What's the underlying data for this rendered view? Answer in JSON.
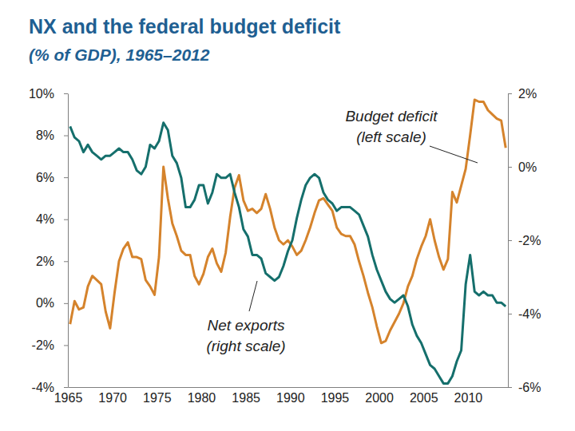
{
  "chart_data": {
    "type": "line",
    "title": "NX and the federal budget deficit",
    "subtitle": "(% of GDP), 1965–2012",
    "annotations": [
      [
        "Budget deficit",
        "(left scale)"
      ],
      [
        "Net exports",
        "(right scale)"
      ]
    ],
    "x": [
      1965.25,
      1965.75,
      1966.25,
      1966.75,
      1967.25,
      1967.75,
      1968.25,
      1968.75,
      1969.25,
      1969.75,
      1970.25,
      1970.75,
      1971.25,
      1971.75,
      1972.25,
      1972.75,
      1973.25,
      1973.75,
      1974.25,
      1974.75,
      1975.25,
      1975.75,
      1976.25,
      1976.75,
      1977.25,
      1977.75,
      1978.25,
      1978.75,
      1979.25,
      1979.75,
      1980.25,
      1980.75,
      1981.25,
      1981.75,
      1982.25,
      1982.75,
      1983.25,
      1983.75,
      1984.25,
      1984.75,
      1985.25,
      1985.75,
      1986.25,
      1986.75,
      1987.25,
      1987.75,
      1988.25,
      1988.75,
      1989.25,
      1989.75,
      1990.25,
      1990.75,
      1991.25,
      1991.75,
      1992.25,
      1992.75,
      1993.25,
      1993.75,
      1994.25,
      1994.75,
      1995.25,
      1995.75,
      1996.25,
      1996.75,
      1997.25,
      1997.75,
      1998.25,
      1998.75,
      1999.25,
      1999.75,
      2000.25,
      2000.75,
      2001.25,
      2001.75,
      2002.25,
      2002.75,
      2003.25,
      2003.75,
      2004.25,
      2004.75,
      2005.25,
      2005.75,
      2006.25,
      2006.75,
      2007.25,
      2007.75,
      2008.25,
      2008.75,
      2009.25,
      2009.75,
      2010.25,
      2010.75,
      2011.25,
      2011.75,
      2012.25,
      2012.75,
      2013.25,
      2013.75,
      2014.25
    ],
    "series": [
      {
        "color": "#d5832c",
        "axis": "y",
        "values": [
          -1.0,
          0.1,
          -0.3,
          -0.2,
          0.8,
          1.3,
          1.1,
          0.9,
          -0.4,
          -1.2,
          0.5,
          2.0,
          2.6,
          2.9,
          2.2,
          2.2,
          2.1,
          1.1,
          0.8,
          0.4,
          2.2,
          6.5,
          5.0,
          3.8,
          3.2,
          2.5,
          2.3,
          2.3,
          1.3,
          0.9,
          1.4,
          2.2,
          2.6,
          1.9,
          1.5,
          2.4,
          4.1,
          5.5,
          6.1,
          4.9,
          4.4,
          4.5,
          4.3,
          4.5,
          5.2,
          4.5,
          3.6,
          3.0,
          2.8,
          3.0,
          2.7,
          2.3,
          2.5,
          3.0,
          3.6,
          4.3,
          4.9,
          5.0,
          4.7,
          4.4,
          3.6,
          3.3,
          3.2,
          3.2,
          2.8,
          2.0,
          1.3,
          0.5,
          -0.2,
          -1.1,
          -1.9,
          -1.8,
          -1.3,
          -0.9,
          -0.5,
          0.0,
          0.8,
          1.3,
          2.1,
          2.7,
          3.2,
          4.0,
          3.0,
          2.2,
          1.6,
          2.1,
          5.3,
          4.8,
          5.6,
          6.4,
          8.0,
          9.7,
          9.6,
          9.6,
          9.2,
          9.0,
          8.8,
          8.7,
          7.4
        ]
      },
      {
        "color": "#156f6c",
        "axis": "y2",
        "values": [
          1.1,
          0.8,
          0.7,
          0.4,
          0.6,
          0.4,
          0.3,
          0.2,
          0.3,
          0.3,
          0.4,
          0.5,
          0.4,
          0.4,
          0.2,
          -0.1,
          -0.2,
          0.0,
          0.6,
          0.5,
          0.7,
          1.2,
          1.0,
          0.3,
          0.1,
          -0.3,
          -1.1,
          -1.1,
          -0.9,
          -0.5,
          -0.5,
          -1.0,
          -0.7,
          -0.2,
          -0.3,
          -0.3,
          -0.2,
          -0.7,
          -1.1,
          -1.7,
          -1.9,
          -2.4,
          -2.4,
          -2.5,
          -2.9,
          -3.0,
          -3.1,
          -3.0,
          -2.7,
          -2.3,
          -2.0,
          -1.4,
          -0.9,
          -0.5,
          -0.3,
          -0.2,
          -0.3,
          -0.7,
          -0.9,
          -1.0,
          -1.2,
          -1.1,
          -1.1,
          -1.1,
          -1.2,
          -1.3,
          -1.6,
          -1.9,
          -2.4,
          -2.8,
          -3.1,
          -3.4,
          -3.6,
          -3.7,
          -3.6,
          -3.5,
          -3.8,
          -4.3,
          -4.6,
          -4.8,
          -5.1,
          -5.4,
          -5.5,
          -5.7,
          -5.9,
          -5.9,
          -5.7,
          -5.3,
          -5.0,
          -3.2,
          -2.4,
          -3.4,
          -3.5,
          -3.4,
          -3.5,
          -3.5,
          -3.7,
          -3.7,
          -3.8
        ]
      }
    ],
    "xlim": [
      1965,
      2014.5
    ],
    "xticks": [
      1965,
      1970,
      1975,
      1980,
      1985,
      1990,
      1995,
      2000,
      2005,
      2010
    ],
    "ylim": [
      -4,
      10
    ],
    "yticks": [
      {
        "value": -4,
        "label": "-4%"
      },
      {
        "value": -2,
        "label": "-2%"
      },
      {
        "value": 0,
        "label": "0%"
      },
      {
        "value": 2,
        "label": "2%"
      },
      {
        "value": 4,
        "label": "4%"
      },
      {
        "value": 6,
        "label": "6%"
      },
      {
        "value": 8,
        "label": "8%"
      },
      {
        "value": 10,
        "label": "10%"
      }
    ],
    "y2lim": [
      -6,
      2
    ],
    "y2ticks": [
      {
        "value": -6,
        "label": "-6%"
      },
      {
        "value": -4,
        "label": "-4%"
      },
      {
        "value": -2,
        "label": "-2%"
      },
      {
        "value": 0,
        "label": "0%"
      },
      {
        "value": 2,
        "label": "2%"
      }
    ],
    "grid": false
  }
}
